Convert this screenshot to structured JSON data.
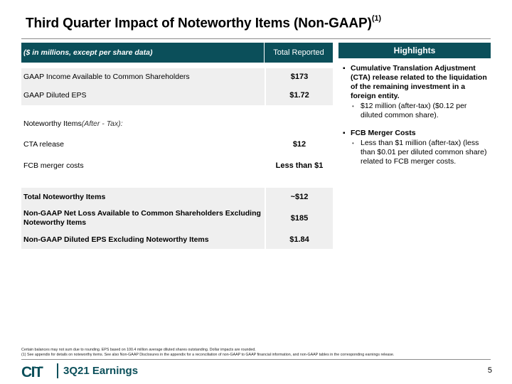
{
  "slide": {
    "title": "Third Quarter Impact of Noteworthy Items (Non-GAAP)",
    "title_sup": "(1)",
    "page_number": "5",
    "footer_title": "3Q21 Earnings",
    "logo_text": "CIT",
    "accent_color": "#0b4f5a"
  },
  "table": {
    "header_label": "($ in millions, except per share data)",
    "header_value": "Total Reported",
    "rows": [
      {
        "label": "GAAP Income Available to Common Shareholders",
        "value": "$173"
      },
      {
        "label": "GAAP Diluted EPS",
        "value": "$1.72"
      },
      {
        "label": "Noteworthy Items",
        "label_suffix": " (After - Tax):",
        "value": ""
      },
      {
        "label": "CTA release",
        "value": "$12"
      },
      {
        "label": "FCB merger costs",
        "value": "Less than $1"
      },
      {
        "label": "Total Noteworthy Items",
        "value": "~$12"
      },
      {
        "label": "Non-GAAP Net Loss Available to Common Shareholders Excluding Noteworthy Items",
        "value": "$185"
      },
      {
        "label": "Non-GAAP Diluted EPS Excluding Noteworthy Items",
        "value": "$1.84"
      }
    ]
  },
  "highlights": {
    "header": "Highlights",
    "items": [
      {
        "text": "Cumulative Translation Adjustment (CTA) release related to the liquidation of the remaining investment in a foreign entity.",
        "sub": "$12 million (after-tax) ($0.12 per diluted common share)."
      },
      {
        "text": "FCB Merger Costs",
        "sub": "Less than $1 million (after-tax) (less than $0.01 per diluted common share) related to FCB merger costs."
      }
    ]
  },
  "footnotes": {
    "line1": "Certain balances may not sum due to rounding. EPS based on 100.4 million average diluted shares outstanding. Dollar impacts are rounded.",
    "line2": "(1)   See appendix for details on noteworthy items. See also Non-GAAP Disclosures in the appendix for a reconciliation of non-GAAP to GAAP financial information, and non-GAAP tables in the corresponding earnings release."
  }
}
